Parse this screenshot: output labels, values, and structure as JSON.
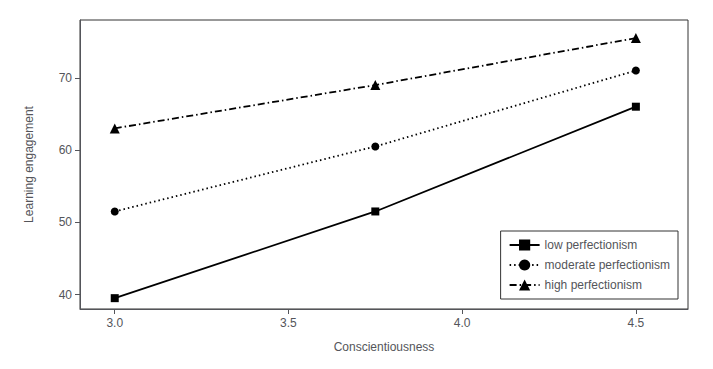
{
  "chart_data": {
    "type": "line",
    "xlabel": "Conscientiousness",
    "ylabel": "Learning engagement",
    "x": [
      3.0,
      3.75,
      4.5
    ],
    "series": [
      {
        "name": "low perfectionism",
        "color": "black",
        "marker": "square",
        "line_style": "solid",
        "values": [
          39.5,
          51.5,
          66.0
        ]
      },
      {
        "name": "moderate perfectionism",
        "color": "black",
        "marker": "circle",
        "line_style": "dotted",
        "values": [
          51.5,
          60.5,
          71.0
        ]
      },
      {
        "name": "high perfectionism",
        "color": "black",
        "marker": "triangle",
        "line_style": "dashdot",
        "values": [
          63.0,
          69.0,
          75.5
        ]
      }
    ],
    "xlim": [
      2.9,
      4.65
    ],
    "ylim": [
      38,
      78
    ],
    "xticks": [
      {
        "value": 3.0,
        "label": "3.0"
      },
      3.5,
      {
        "value": 4.0,
        "label": "4.0"
      },
      4.5
    ],
    "yticks": [
      40,
      50,
      60,
      70
    ],
    "grid": false,
    "legend": "lower right"
  }
}
